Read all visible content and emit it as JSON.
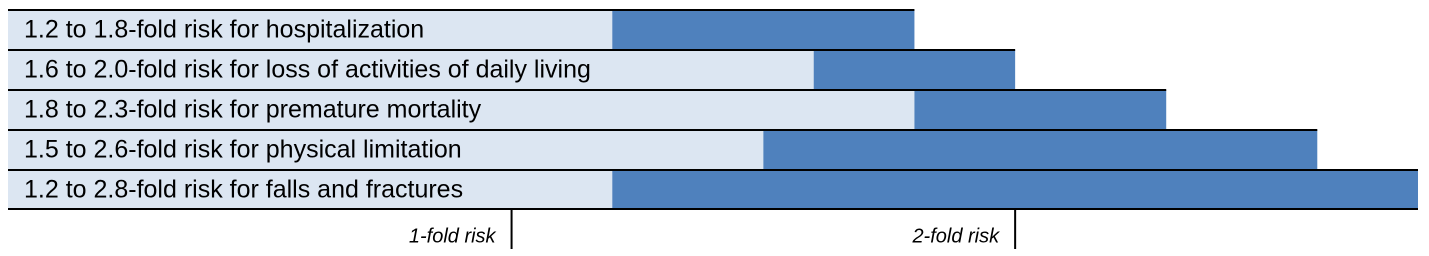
{
  "chart_data": {
    "type": "range-bar",
    "categories": [
      "1.2 to 1.8-fold risk for hospitalization",
      "1.6 to 2.0-fold risk for loss of activities of daily living",
      "1.8 to 2.3-fold risk for premature mortality",
      "1.5 to 2.6-fold risk for physical limitation",
      "1.2 to 2.8-fold risk for falls and fractures"
    ],
    "low": [
      1.2,
      1.6,
      1.8,
      1.5,
      1.2
    ],
    "high": [
      1.8,
      2.0,
      2.3,
      2.6,
      2.8
    ],
    "color": "#4f81bd",
    "label_background": "#dce6f2",
    "xlim": [
      0,
      2.8
    ],
    "xticks": [
      {
        "value": 1,
        "label": "1-fold risk"
      },
      {
        "value": 2,
        "label": "2-fold risk"
      }
    ]
  }
}
